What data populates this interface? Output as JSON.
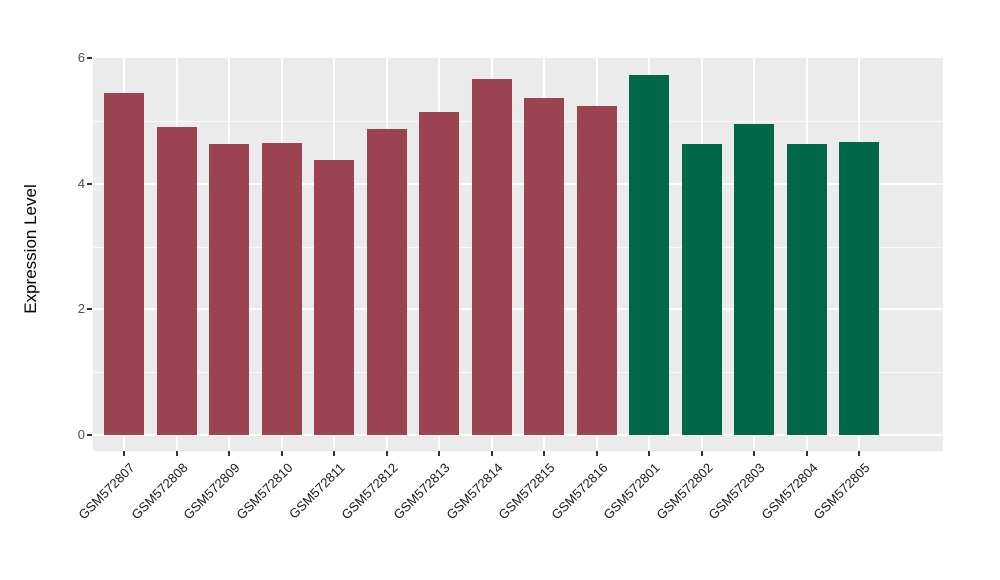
{
  "figure": {
    "background_color": "#FFFFFF",
    "panel_background_color": "#EBEBEB",
    "gridline_color": "#FFFFFF",
    "axis_tick_text_color": "#4D4D4D",
    "x_label_text_color": "#1a1a1a",
    "group_colors": {
      "red_group": "#9B4350",
      "green_group": "#006849"
    }
  },
  "chart_data": {
    "type": "bar",
    "title": "",
    "xlabel": "",
    "ylabel": "Expression Level",
    "ylim": [
      0,
      6
    ],
    "yticks": [
      0,
      2,
      4,
      6
    ],
    "yticks_minor": [
      1,
      3,
      5
    ],
    "grid": true,
    "legend": false,
    "x_label_angle_deg": 45,
    "categories": [
      "GSM572807",
      "GSM572808",
      "GSM572809",
      "GSM572810",
      "GSM572811",
      "GSM572812",
      "GSM572813",
      "GSM572814",
      "GSM572815",
      "GSM572816",
      "GSM572801",
      "GSM572802",
      "GSM572803",
      "GSM572804",
      "GSM572805"
    ],
    "values": [
      5.45,
      4.9,
      4.63,
      4.65,
      4.38,
      4.87,
      5.14,
      5.66,
      5.36,
      5.24,
      5.73,
      4.63,
      4.95,
      4.63,
      4.66
    ],
    "bar_colors": [
      "#9B4350",
      "#9B4350",
      "#9B4350",
      "#9B4350",
      "#9B4350",
      "#9B4350",
      "#9B4350",
      "#9B4350",
      "#9B4350",
      "#9B4350",
      "#006849",
      "#006849",
      "#006849",
      "#006849",
      "#006849"
    ]
  }
}
